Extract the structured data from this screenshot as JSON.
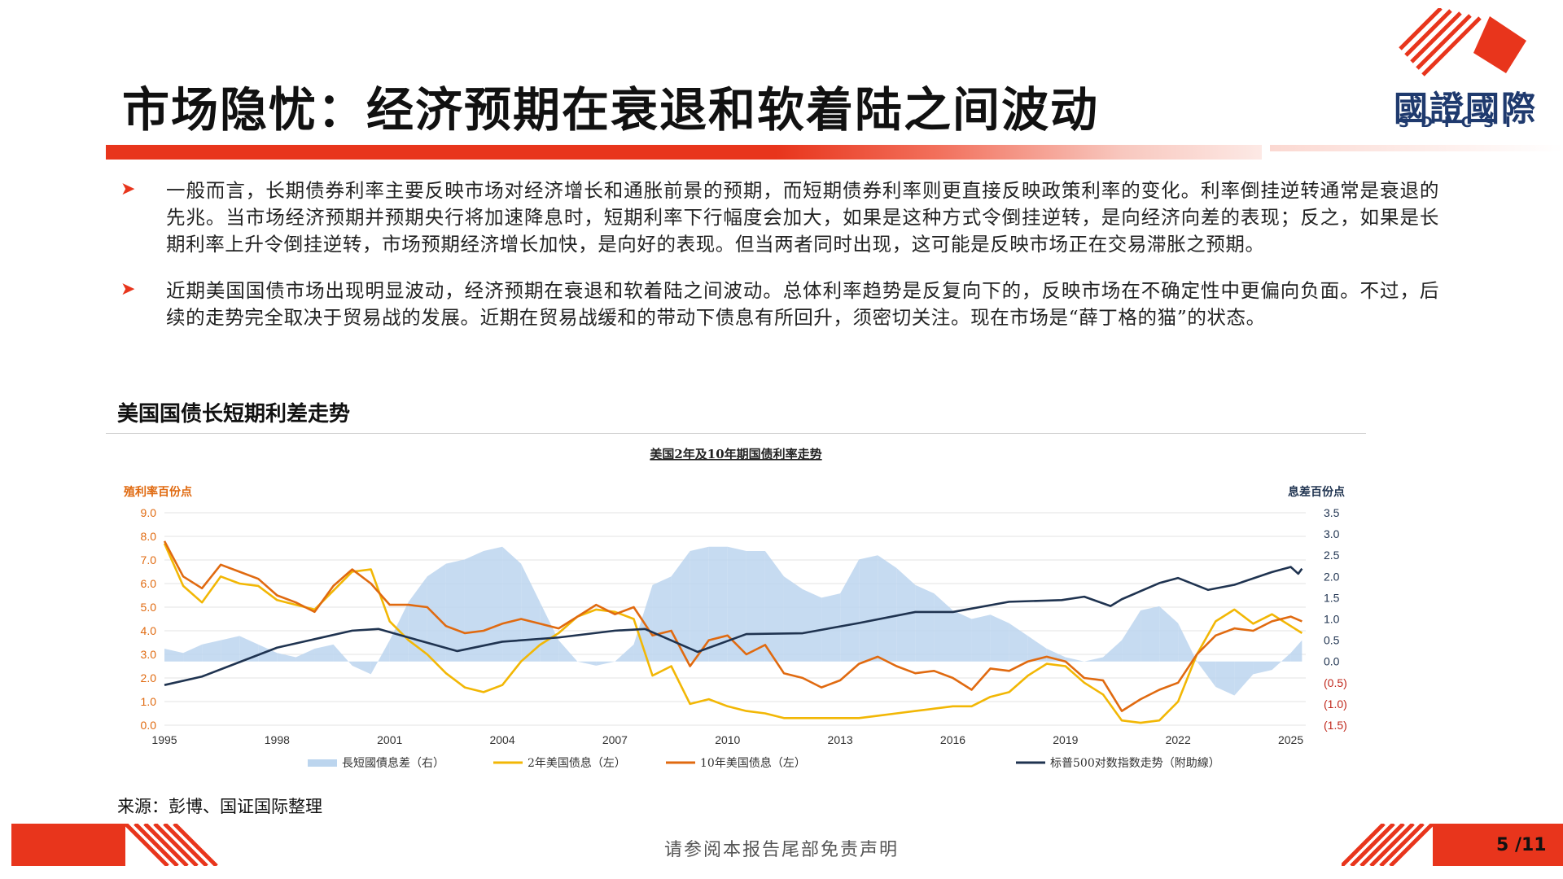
{
  "title": "市场隐忧：经济预期在衰退和软着陆之间波动",
  "logo": {
    "name": "國證國際",
    "sub": "SDICSI"
  },
  "bullets": [
    {
      "text": "一般而言，长期债券利率主要反映市场对经济增长和通胀前景的预期，而短期债券利率则更直接反映政策利率的变化。利率倒挂逆转通常是衰退的先兆。当市场经济预期并预期央行将加速降息时，短期利率下行幅度会加大，如果是这种方式令倒挂逆转，是向经济向差的表现；反之，如果是长期利率上升令倒挂逆转，市场预期经济增长加快，是向好的表现。但当两者同时出现，这可能是反映市场正在交易滞胀之预期。"
    },
    {
      "text": "近期美国国债市场出现明显波动，经济预期在衰退和软着陆之间波动。总体利率趋势是反复向下的，反映市场在不确定性中更偏向负面。不过，后续的走势完全取决于贸易战的发展。近期在贸易战缓和的带动下债息有所回升，须密切关注。现在市场是“薛丁格的猫”的状态。"
    }
  ],
  "section_label": "美国国债长短期利差走势",
  "source": "来源：彭博、国证国际整理",
  "disclaimer": "请参阅本报告尾部免责声明",
  "page_number": "5 /11",
  "colors": {
    "accent": "#e8351c",
    "spread": "#bcd5ee",
    "y2": "#f2b705",
    "y10": "#e06a10",
    "sp": "#1f3350"
  },
  "chart_data": {
    "type": "line",
    "title": "美国2年及10年期国债利率走势",
    "ylabel_left": "殖利率百份点",
    "ylabel_right": "息差百份点",
    "ylim_left": [
      0,
      9
    ],
    "ylim_right": [
      -1.5,
      3.5
    ],
    "left_ticks": [
      "0.0",
      "1.0",
      "2.0",
      "3.0",
      "4.0",
      "5.0",
      "6.0",
      "7.0",
      "8.0",
      "9.0"
    ],
    "right_ticks": [
      "(1.5)",
      "(1.0)",
      "(0.5)",
      "0.0",
      "0.5",
      "1.0",
      "1.5",
      "2.0",
      "2.5",
      "3.0",
      "3.5"
    ],
    "x_ticks": [
      "1995",
      "1998",
      "2001",
      "2004",
      "2007",
      "2010",
      "2013",
      "2016",
      "2019",
      "2022",
      "2025"
    ],
    "xlim": [
      1995,
      2025.4
    ],
    "legend_position": "bottom",
    "grid": true,
    "series": [
      {
        "name": "長短國債息差（右）",
        "type": "area",
        "axis": "right",
        "x": [
          1995.0,
          1995.5,
          1996.0,
          1996.5,
          1997.0,
          1997.5,
          1998.0,
          1998.5,
          1999.0,
          1999.5,
          2000.0,
          2000.5,
          2001.0,
          2001.5,
          2002.0,
          2002.5,
          2003.0,
          2003.5,
          2004.0,
          2004.5,
          2005.0,
          2005.5,
          2006.0,
          2006.5,
          2007.0,
          2007.5,
          2008.0,
          2008.5,
          2009.0,
          2009.5,
          2010.0,
          2010.5,
          2011.0,
          2011.5,
          2012.0,
          2012.5,
          2013.0,
          2013.5,
          2014.0,
          2014.5,
          2015.0,
          2015.5,
          2016.0,
          2016.5,
          2017.0,
          2017.5,
          2018.0,
          2018.5,
          2019.0,
          2019.5,
          2020.0,
          2020.5,
          2021.0,
          2021.5,
          2022.0,
          2022.5,
          2023.0,
          2023.5,
          2024.0,
          2024.5,
          2025.0,
          2025.3
        ],
        "values": [
          0.3,
          0.2,
          0.4,
          0.5,
          0.6,
          0.4,
          0.2,
          0.1,
          0.3,
          0.4,
          -0.1,
          -0.3,
          0.5,
          1.4,
          2.0,
          2.3,
          2.4,
          2.6,
          2.7,
          2.3,
          1.4,
          0.5,
          0.0,
          -0.1,
          0.0,
          0.4,
          1.8,
          2.0,
          2.6,
          2.7,
          2.7,
          2.6,
          2.6,
          2.0,
          1.7,
          1.5,
          1.6,
          2.4,
          2.5,
          2.2,
          1.8,
          1.6,
          1.2,
          1.0,
          1.1,
          0.9,
          0.6,
          0.3,
          0.1,
          0.0,
          0.1,
          0.5,
          1.2,
          1.3,
          0.9,
          0.0,
          -0.6,
          -0.8,
          -0.3,
          -0.2,
          0.2,
          0.5
        ]
      },
      {
        "name": "2年美国债息（左）",
        "type": "line",
        "axis": "left",
        "x": [
          1995.0,
          1995.5,
          1996.0,
          1996.5,
          1997.0,
          1997.5,
          1998.0,
          1998.5,
          1999.0,
          1999.5,
          2000.0,
          2000.5,
          2001.0,
          2001.5,
          2002.0,
          2002.5,
          2003.0,
          2003.5,
          2004.0,
          2004.5,
          2005.0,
          2005.5,
          2006.0,
          2006.5,
          2007.0,
          2007.5,
          2008.0,
          2008.5,
          2009.0,
          2009.5,
          2010.0,
          2010.5,
          2011.0,
          2011.5,
          2012.0,
          2012.5,
          2013.0,
          2013.5,
          2014.0,
          2014.5,
          2015.0,
          2015.5,
          2016.0,
          2016.5,
          2017.0,
          2017.5,
          2018.0,
          2018.5,
          2019.0,
          2019.5,
          2020.0,
          2020.5,
          2021.0,
          2021.5,
          2022.0,
          2022.5,
          2023.0,
          2023.5,
          2024.0,
          2024.5,
          2025.0,
          2025.3
        ],
        "values": [
          7.7,
          5.9,
          5.2,
          6.3,
          6.0,
          5.9,
          5.3,
          5.1,
          4.9,
          5.7,
          6.5,
          6.6,
          4.4,
          3.6,
          3.0,
          2.2,
          1.6,
          1.4,
          1.7,
          2.7,
          3.4,
          3.9,
          4.6,
          4.9,
          4.8,
          4.5,
          2.1,
          2.5,
          0.9,
          1.1,
          0.8,
          0.6,
          0.5,
          0.3,
          0.3,
          0.3,
          0.3,
          0.3,
          0.4,
          0.5,
          0.6,
          0.7,
          0.8,
          0.8,
          1.2,
          1.4,
          2.1,
          2.6,
          2.5,
          1.8,
          1.3,
          0.2,
          0.1,
          0.2,
          1.0,
          3.0,
          4.4,
          4.9,
          4.3,
          4.7,
          4.2,
          3.9
        ]
      },
      {
        "name": "10年美国债息（左）",
        "type": "line",
        "axis": "left",
        "x": [
          1995.0,
          1995.5,
          1996.0,
          1996.5,
          1997.0,
          1997.5,
          1998.0,
          1998.5,
          1999.0,
          1999.5,
          2000.0,
          2000.5,
          2001.0,
          2001.5,
          2002.0,
          2002.5,
          2003.0,
          2003.5,
          2004.0,
          2004.5,
          2005.0,
          2005.5,
          2006.0,
          2006.5,
          2007.0,
          2007.5,
          2008.0,
          2008.5,
          2009.0,
          2009.5,
          2010.0,
          2010.5,
          2011.0,
          2011.5,
          2012.0,
          2012.5,
          2013.0,
          2013.5,
          2014.0,
          2014.5,
          2015.0,
          2015.5,
          2016.0,
          2016.5,
          2017.0,
          2017.5,
          2018.0,
          2018.5,
          2019.0,
          2019.5,
          2020.0,
          2020.5,
          2021.0,
          2021.5,
          2022.0,
          2022.5,
          2023.0,
          2023.5,
          2024.0,
          2024.5,
          2025.0,
          2025.3
        ],
        "values": [
          7.8,
          6.3,
          5.8,
          6.8,
          6.5,
          6.2,
          5.5,
          5.2,
          4.8,
          5.9,
          6.6,
          6.0,
          5.1,
          5.1,
          5.0,
          4.2,
          3.9,
          4.0,
          4.3,
          4.5,
          4.3,
          4.1,
          4.6,
          5.1,
          4.7,
          5.0,
          3.8,
          4.0,
          2.5,
          3.6,
          3.8,
          3.0,
          3.4,
          2.2,
          2.0,
          1.6,
          1.9,
          2.6,
          2.9,
          2.5,
          2.2,
          2.3,
          2.0,
          1.5,
          2.4,
          2.3,
          2.7,
          2.9,
          2.7,
          2.0,
          1.9,
          0.6,
          1.1,
          1.5,
          1.8,
          3.0,
          3.8,
          4.1,
          4.0,
          4.4,
          4.6,
          4.4
        ]
      },
      {
        "name": "标普500对数指数走势（附助線）",
        "type": "line",
        "axis": "hidden",
        "x": [
          1995.0,
          1996.0,
          1997.0,
          1998.0,
          1999.0,
          2000.0,
          2000.7,
          2001.5,
          2002.8,
          2004.0,
          2005.5,
          2007.0,
          2007.8,
          2009.2,
          2010.5,
          2012.0,
          2013.5,
          2015.0,
          2016.0,
          2017.5,
          2018.9,
          2019.5,
          2020.2,
          2020.5,
          2021.5,
          2022.0,
          2022.8,
          2023.5,
          2024.5,
          2025.0,
          2025.2,
          2025.3
        ],
        "values": [
          0.0,
          0.1,
          0.27,
          0.44,
          0.54,
          0.64,
          0.66,
          0.56,
          0.4,
          0.51,
          0.56,
          0.64,
          0.66,
          0.39,
          0.6,
          0.61,
          0.73,
          0.86,
          0.86,
          0.98,
          1.0,
          1.04,
          0.93,
          1.01,
          1.2,
          1.26,
          1.12,
          1.18,
          1.33,
          1.39,
          1.31,
          1.37
        ]
      }
    ]
  }
}
